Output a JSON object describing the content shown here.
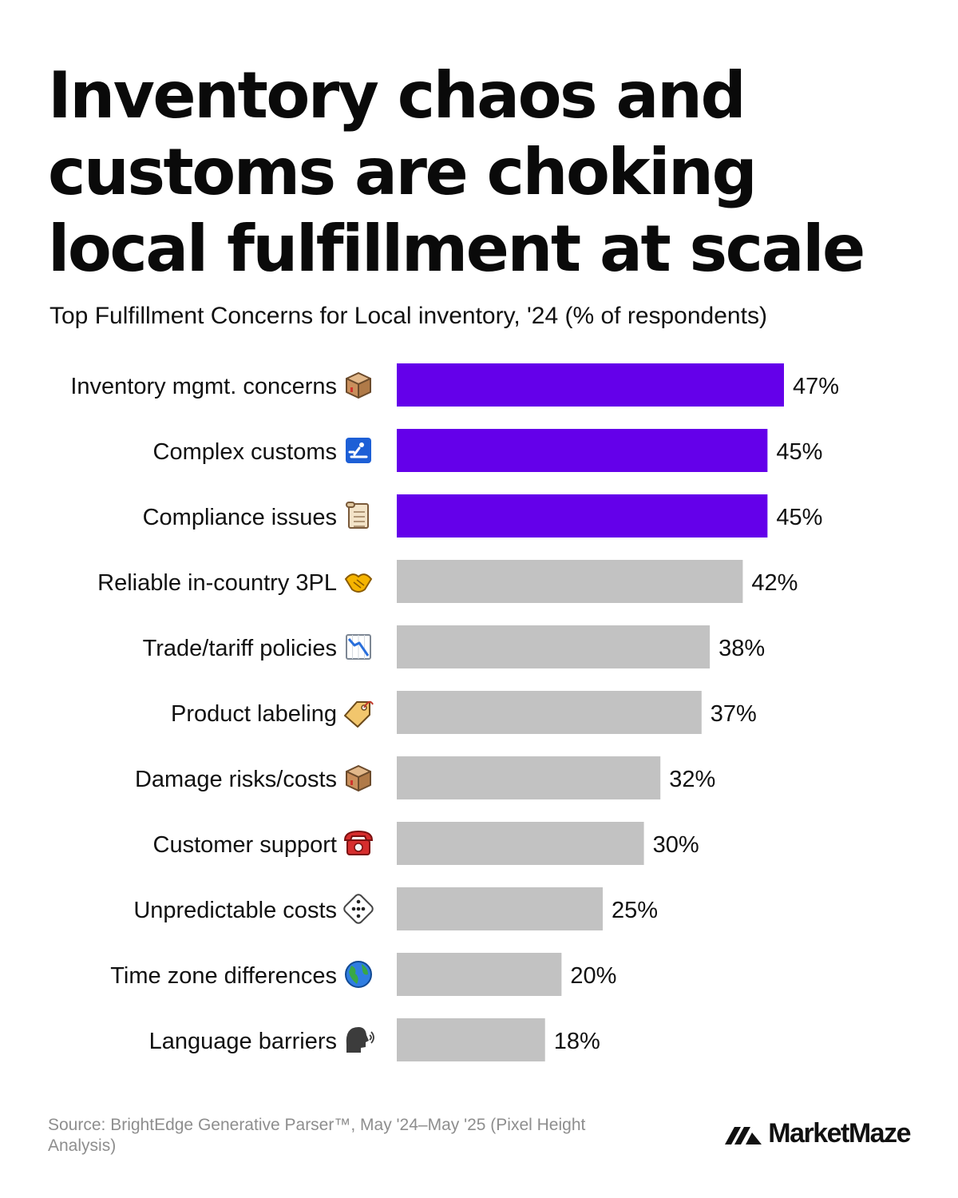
{
  "header": {
    "title": "Inventory chaos and customs are choking local fulfillment at scale",
    "subtitle": "Top Fulfillment Concerns for Local inventory, '24 (% of respondents)"
  },
  "footer": {
    "source": "Source: BrightEdge Generative Parser™, May '24–May '25 (Pixel Height Analysis)",
    "brand": "MarketMaze"
  },
  "colors": {
    "highlight": "#6400ea",
    "default": "#c2c2c2",
    "text": "#111111"
  },
  "chart_data": {
    "type": "bar",
    "orientation": "horizontal",
    "categories": [
      "Inventory mgmt. concerns",
      "Complex customs",
      "Compliance issues",
      "Reliable in-country 3PL",
      "Trade/tariff policies",
      "Product labeling",
      "Damage risks/costs",
      "Customer support",
      "Unpredictable costs",
      "Time zone differences",
      "Language barriers"
    ],
    "icons": [
      "package-icon",
      "customs-icon",
      "scroll-icon",
      "handshake-icon",
      "chart-decreasing-icon",
      "label-tag-icon",
      "package-icon",
      "telephone-icon",
      "dice-icon",
      "globe-icon",
      "speaking-head-icon"
    ],
    "values": [
      47,
      45,
      45,
      42,
      38,
      37,
      32,
      30,
      25,
      20,
      18
    ],
    "value_labels": [
      "47%",
      "45%",
      "45%",
      "42%",
      "38%",
      "37%",
      "32%",
      "30%",
      "25%",
      "20%",
      "18%"
    ],
    "highlighted": [
      true,
      true,
      true,
      false,
      false,
      false,
      false,
      false,
      false,
      false,
      false
    ],
    "xlim": [
      0,
      47
    ],
    "grid": false,
    "legend": "none"
  }
}
